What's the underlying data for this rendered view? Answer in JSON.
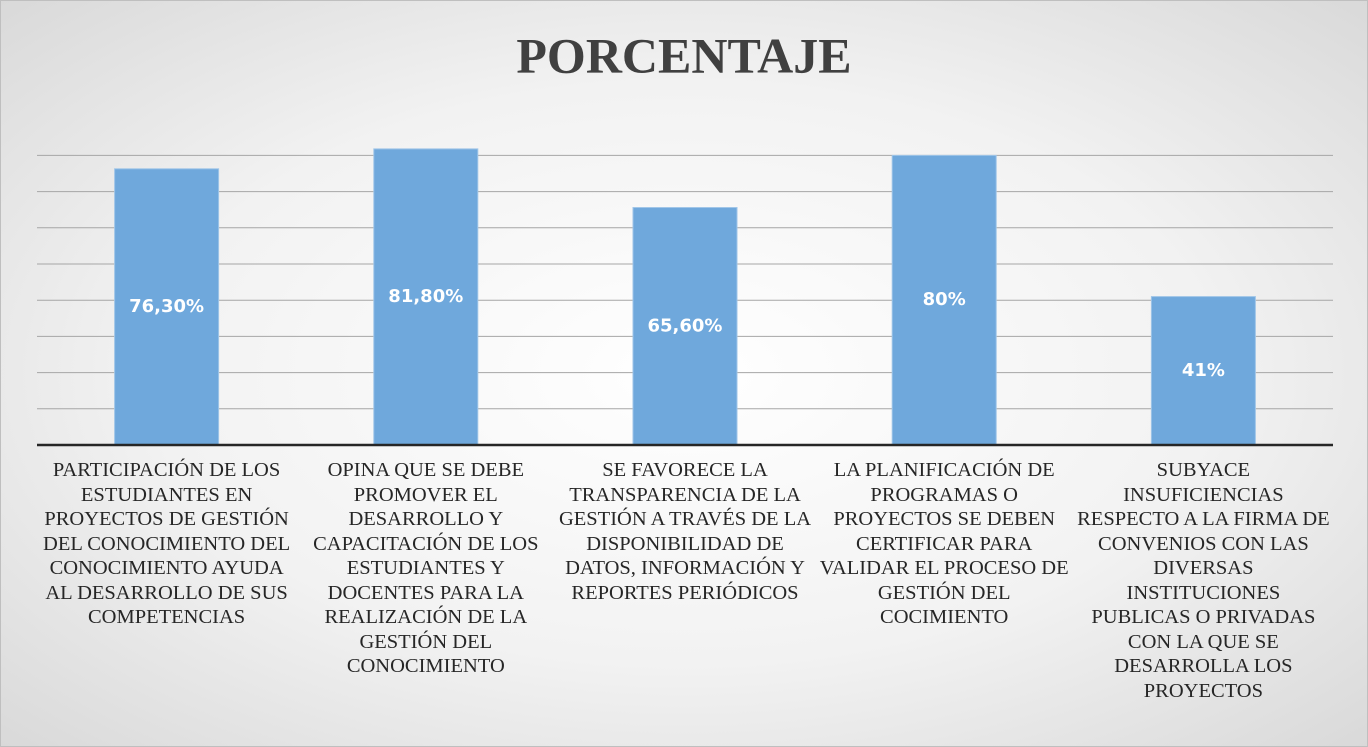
{
  "chart_data": {
    "type": "bar",
    "title": "PORCENTAJE",
    "categories": [
      "PARTICIPACIÓN DE LOS ESTUDIANTES EN PROYECTOS DE GESTIÓN DEL CONOCIMIENTO DEL CONOCIMIENTO AYUDA AL DESARROLLO DE SUS COMPETENCIAS",
      "OPINA QUE SE DEBE PROMOVER EL DESARROLLO Y CAPACITACIÓN DE LOS ESTUDIANTES Y DOCENTES PARA LA REALIZACIÓN DE LA GESTIÓN DEL CONOCIMIENTO",
      "SE FAVORECE LA TRANSPARENCIA DE LA GESTIÓN A TRAVÉS DE LA DISPONIBILIDAD DE DATOS, INFORMACIÓN Y REPORTES PERIÓDICOS",
      "LA PLANIFICACIÓN DE PROGRAMAS O PROYECTOS SE DEBEN CERTIFICAR PARA VALIDAR EL PROCESO DE GESTIÓN DEL COCIMIENTO",
      "SUBYACE INSUFICIENCIAS RESPECTO A LA FIRMA DE CONVENIOS CON LAS DIVERSAS INSTITUCIONES PUBLICAS O PRIVADAS CON LA QUE SE DESARROLLA LOS PROYECTOS"
    ],
    "values": [
      76.3,
      81.8,
      65.6,
      80,
      41
    ],
    "value_labels": [
      "76,30%",
      "81,80%",
      "65,60%",
      "80%",
      "41%"
    ],
    "color": "#6fa8dc",
    "ylim": [
      0,
      90
    ],
    "yticks": [
      0,
      10,
      20,
      30,
      40,
      50,
      60,
      70,
      80
    ],
    "grid": true
  }
}
